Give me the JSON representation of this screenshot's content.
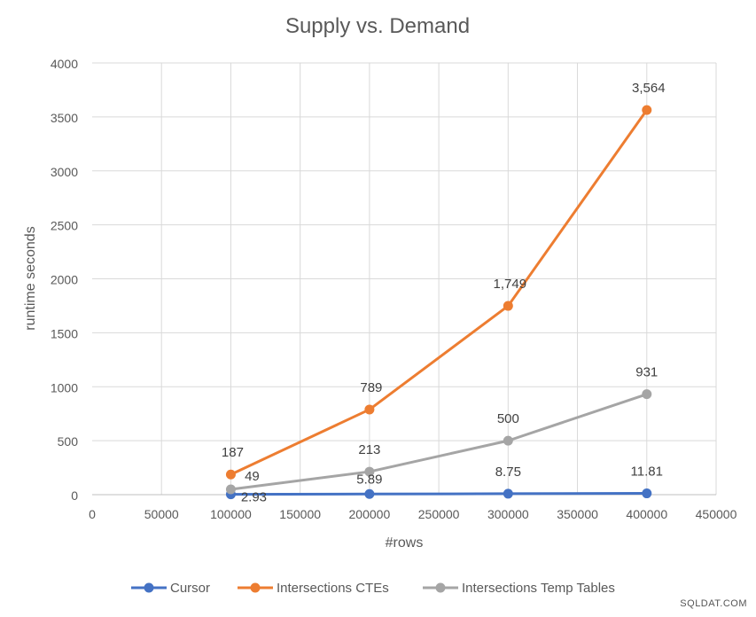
{
  "watermark": "SQLDAT.COM",
  "chart_data": {
    "type": "line",
    "title": "Supply vs. Demand",
    "xlabel": "#rows",
    "ylabel": "runtime seconds",
    "xlim": [
      0,
      450000
    ],
    "ylim": [
      0,
      4000
    ],
    "x_ticks": [
      0,
      50000,
      100000,
      150000,
      200000,
      250000,
      300000,
      350000,
      400000,
      450000
    ],
    "y_ticks": [
      0,
      500,
      1000,
      1500,
      2000,
      2500,
      3000,
      3500,
      4000
    ],
    "grid": true,
    "legend_position": "bottom",
    "series": [
      {
        "name": "Cursor",
        "color": "#4472C4",
        "x": [
          100000,
          200000,
          300000,
          400000
        ],
        "y": [
          2.93,
          5.89,
          8.75,
          11.81
        ],
        "labels": [
          "2.93",
          "5.89",
          "8.75",
          "11.81"
        ]
      },
      {
        "name": "Intersections CTEs",
        "color": "#ED7D31",
        "x": [
          100000,
          200000,
          300000,
          400000
        ],
        "y": [
          187,
          789,
          1749,
          3564
        ],
        "labels": [
          "187",
          "789",
          "1,749",
          "3,564"
        ]
      },
      {
        "name": "Intersections Temp Tables",
        "color": "#A5A5A5",
        "x": [
          100000,
          200000,
          300000,
          400000
        ],
        "y": [
          49,
          213,
          500,
          931
        ],
        "labels": [
          "49",
          "213",
          "500",
          "931"
        ]
      }
    ]
  }
}
